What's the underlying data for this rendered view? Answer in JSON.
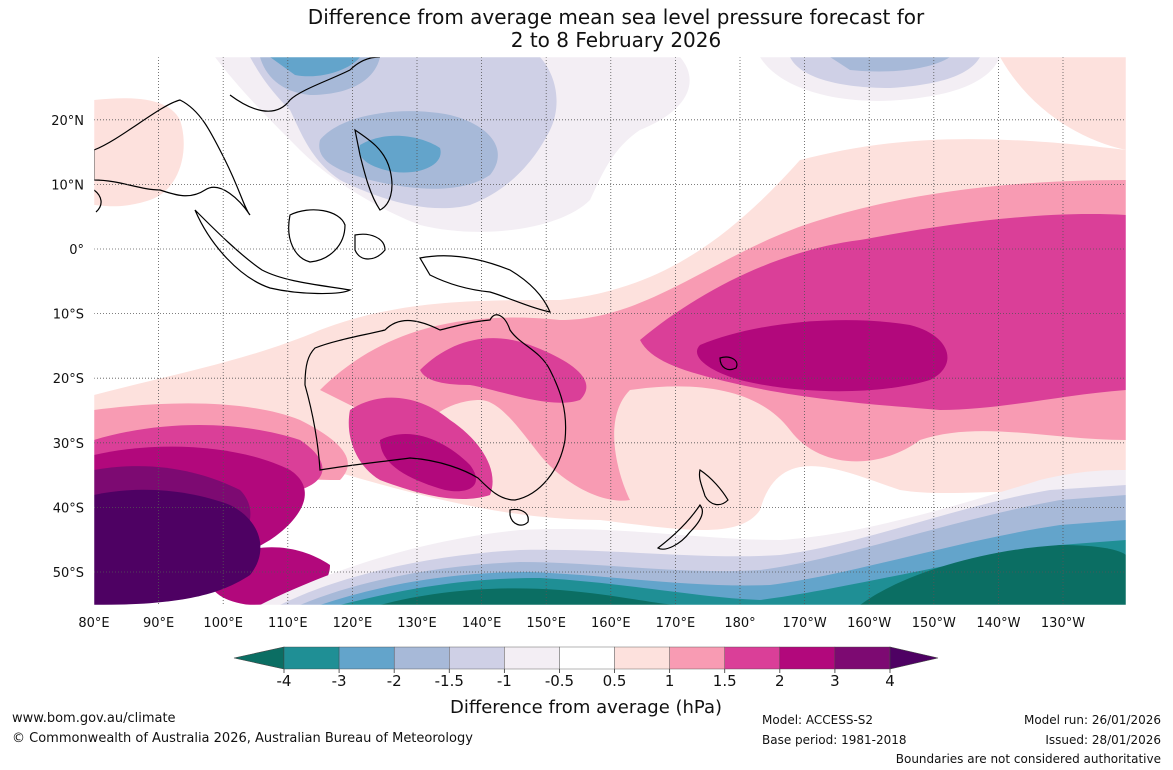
{
  "title": {
    "line1": "Difference from average mean sea level pressure forecast for",
    "line2": "2 to 8 February 2026"
  },
  "map": {
    "lat_labels": [
      "20°N",
      "10°N",
      "0°",
      "10°S",
      "20°S",
      "30°S",
      "40°S",
      "50°S"
    ],
    "lon_labels": [
      "80°E",
      "90°E",
      "100°E",
      "110°E",
      "120°E",
      "130°E",
      "140°E",
      "150°E",
      "160°E",
      "170°E",
      "180°",
      "170°W",
      "160°W",
      "150°W",
      "140°W",
      "130°W"
    ]
  },
  "legend": {
    "levels": [
      "-4",
      "-3",
      "-2",
      "-1.5",
      "-1",
      "-0.5",
      "0.5",
      "1",
      "1.5",
      "2",
      "3",
      "4"
    ],
    "colors": [
      "#0b6e63",
      "#1f8f95",
      "#63a4cb",
      "#a7b9d8",
      "#cfd0e6",
      "#f3eef4",
      "#ffffff",
      "#fde1dd",
      "#f89bb3",
      "#da3f98",
      "#b2087c",
      "#7d0a72",
      "#4e0163"
    ],
    "title": "Difference from average (hPa)"
  },
  "footer": {
    "website": "www.bom.gov.au/climate",
    "copyright": "© Commonwealth of Australia 2026, Australian Bureau of Meteorology",
    "model": "Model: ACCESS-S2",
    "base_period": "Base period: 1981-2018",
    "model_run": "Model run: 26/01/2026",
    "issued": "Issued: 28/01/2026",
    "disclaimer": "Boundaries are not considered authoritative"
  }
}
